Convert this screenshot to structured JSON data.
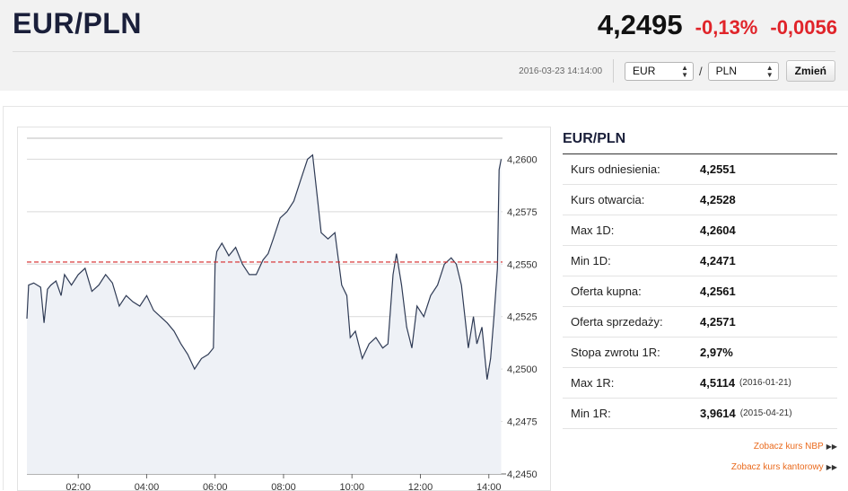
{
  "header": {
    "pair": "EUR/PLN",
    "price": "4,2495",
    "change_pct": "-0,13%",
    "change_abs": "-0,0056",
    "timestamp": "2016-03-23 14:14:00",
    "from_currency": "EUR",
    "to_currency": "PLN",
    "separator": "/",
    "change_button": "Zmień"
  },
  "colors": {
    "accent_negative": "#e0242a",
    "title": "#1a1f3a",
    "link": "#ea6a1d",
    "reference_line": "#d62728"
  },
  "info": {
    "title": "EUR/PLN",
    "rows": [
      {
        "label": "Kurs odniesienia:",
        "value": "4,2551",
        "date": ""
      },
      {
        "label": "Kurs otwarcia:",
        "value": "4,2528",
        "date": ""
      },
      {
        "label": "Max 1D:",
        "value": "4,2604",
        "date": ""
      },
      {
        "label": "Min 1D:",
        "value": "4,2471",
        "date": ""
      },
      {
        "label": "Oferta kupna:",
        "value": "4,2561",
        "date": ""
      },
      {
        "label": "Oferta sprzedaży:",
        "value": "4,2571",
        "date": ""
      },
      {
        "label": "Stopa zwrotu 1R:",
        "value": "2,97%",
        "date": ""
      },
      {
        "label": "Max 1R:",
        "value": "4,5114",
        "date": "(2016-01-21)"
      },
      {
        "label": "Min 1R:",
        "value": "3,9614",
        "date": "(2015-04-21)"
      }
    ],
    "links": [
      {
        "label": "Zobacz kurs NBP",
        "arrow": "▶▶"
      },
      {
        "label": "Zobacz kurs kantorowy",
        "arrow": "▶▶"
      }
    ]
  },
  "chart_data": {
    "type": "line",
    "x_unit": "hours",
    "xlim": [
      0.5,
      14.4
    ],
    "ylim": [
      4.245,
      4.261
    ],
    "x_ticks": [
      2,
      4,
      6,
      8,
      10,
      12,
      14
    ],
    "x_tick_labels": [
      "02:00",
      "04:00",
      "06:00",
      "08:00",
      "10:00",
      "12:00",
      "14:00"
    ],
    "y_ticks": [
      4.245,
      4.2475,
      4.25,
      4.2525,
      4.255,
      4.2575,
      4.26
    ],
    "y_tick_labels": [
      "4,2450",
      "4,2475",
      "4,2500",
      "4,2525",
      "4,2550",
      "4,2575",
      "4,2600"
    ],
    "reference_value": 4.2551,
    "grid": true,
    "series": [
      {
        "x": [
          0.5,
          0.55,
          0.7,
          0.9,
          1.0,
          1.1,
          1.2,
          1.35,
          1.5,
          1.6,
          1.8,
          2.0,
          2.2,
          2.4,
          2.6,
          2.8,
          3.0,
          3.2,
          3.4,
          3.6,
          3.8,
          4.0,
          4.2,
          4.4,
          4.6,
          4.8,
          5.0,
          5.2,
          5.4,
          5.6,
          5.8,
          5.95,
          6.0,
          6.05,
          6.2,
          6.4,
          6.6,
          6.8,
          7.0,
          7.2,
          7.4,
          7.55,
          7.7,
          7.9,
          8.1,
          8.3,
          8.5,
          8.7,
          8.85,
          9.0,
          9.1,
          9.3,
          9.5,
          9.7,
          9.85,
          9.95,
          10.1,
          10.3,
          10.5,
          10.7,
          10.9,
          11.05,
          11.2,
          11.3,
          11.45,
          11.6,
          11.75,
          11.9,
          12.1,
          12.3,
          12.5,
          12.7,
          12.9,
          13.05,
          13.2,
          13.4,
          13.55,
          13.65,
          13.8,
          13.95,
          14.05,
          14.15,
          14.25,
          14.3,
          14.36
        ],
        "y": [
          4.2524,
          4.254,
          4.2541,
          4.2539,
          4.2522,
          4.2538,
          4.254,
          4.2542,
          4.2535,
          4.2545,
          4.254,
          4.2545,
          4.2548,
          4.2537,
          4.254,
          4.2545,
          4.2541,
          4.253,
          4.2535,
          4.2532,
          4.253,
          4.2535,
          4.2528,
          4.2525,
          4.2522,
          4.2518,
          4.2512,
          4.2507,
          4.25,
          4.2505,
          4.2507,
          4.251,
          4.255,
          4.2556,
          4.256,
          4.2554,
          4.2558,
          4.255,
          4.2545,
          4.2545,
          4.2552,
          4.2555,
          4.2562,
          4.2572,
          4.2575,
          4.258,
          4.259,
          4.26,
          4.2602,
          4.258,
          4.2565,
          4.2562,
          4.2565,
          4.254,
          4.2535,
          4.2515,
          4.2518,
          4.2505,
          4.2512,
          4.2515,
          4.251,
          4.2512,
          4.2545,
          4.2555,
          4.254,
          4.252,
          4.251,
          4.253,
          4.2525,
          4.2535,
          4.254,
          4.255,
          4.2553,
          4.255,
          4.254,
          4.251,
          4.2525,
          4.2512,
          4.252,
          4.2495,
          4.2505,
          4.2525,
          4.2548,
          4.2595,
          4.26
        ]
      }
    ]
  }
}
